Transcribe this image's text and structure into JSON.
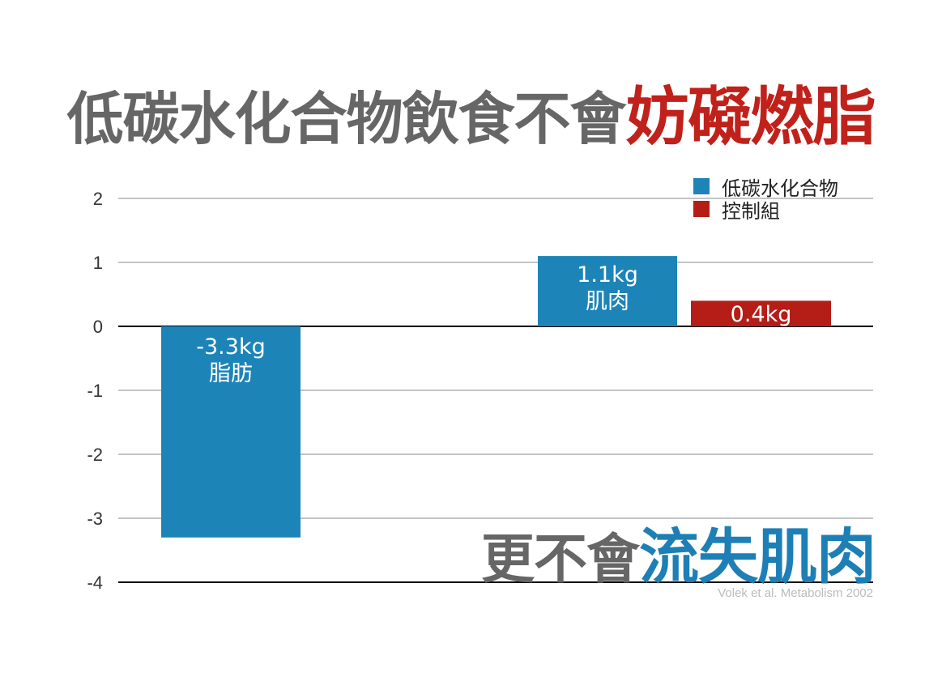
{
  "title": {
    "part1": "低碳水化合物飲食不會",
    "part2": "妨礙燃脂"
  },
  "subtitle": {
    "part1": "更不會",
    "part2": "流失肌肉"
  },
  "source": "Volek et al. Metabolism 2002",
  "colors": {
    "low_carb": "#1d84b8",
    "control": "#b51d17",
    "title_gray": "#666666",
    "title_red": "#c0211b",
    "subtitle_blue": "#1d7fb6"
  },
  "chart_data": {
    "type": "bar",
    "ylim": [
      -4,
      2
    ],
    "yticks": [
      2,
      1,
      0,
      -1,
      -2,
      -3,
      -4
    ],
    "grid": true,
    "legend_position": "top-right",
    "series": [
      {
        "name": "低碳水化合物",
        "color": "#1d84b8"
      },
      {
        "name": "控制組",
        "color": "#b51d17"
      }
    ],
    "bars": [
      {
        "series": 0,
        "slot": 0,
        "value": -3.3,
        "label_line1": "-3.3kg",
        "label_line2": "脂肪"
      },
      {
        "series": 0,
        "slot": 1,
        "value": 1.1,
        "label_line1": "1.1kg",
        "label_line2": "肌肉"
      },
      {
        "series": 1,
        "slot": 2,
        "value": 0.4,
        "label_line1": "0.4kg",
        "label_line2": ""
      }
    ]
  }
}
